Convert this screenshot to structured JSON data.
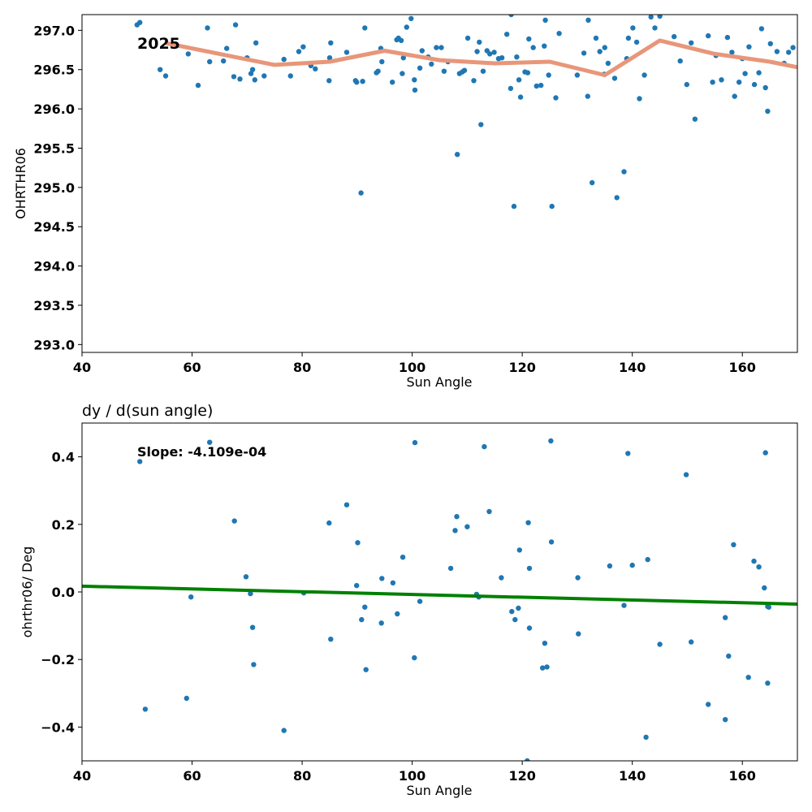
{
  "chart_data": [
    {
      "type": "scatter",
      "title": "",
      "xlabel": "Sun Angle",
      "ylabel": "OHRTHR06",
      "xlim": [
        40,
        170
      ],
      "ylim": [
        292.9,
        297.2
      ],
      "xticks": [
        40,
        60,
        80,
        100,
        120,
        140,
        160
      ],
      "yticks": [
        293.0,
        293.5,
        294.0,
        294.5,
        295.0,
        295.5,
        296.0,
        296.5,
        297.0
      ],
      "annotation": "2025",
      "grid": false,
      "colors": {
        "points": "#1f77b4",
        "trend": "#e8967a"
      },
      "series": [
        {
          "kind": "points",
          "x": [
            50.0,
            50.5,
            54.2,
            55.2,
            59.3,
            61.1,
            62.8,
            63.2,
            65.7,
            66.3,
            67.6,
            67.9,
            68.7,
            70.0,
            70.7,
            71.0,
            71.4,
            71.6,
            73.1,
            76.7,
            77.9,
            79.4,
            80.2,
            81.6,
            82.4,
            84.9,
            85.0,
            85.2,
            88.1,
            89.7,
            89.9,
            90.7,
            91.4,
            93.5,
            93.8,
            94.3,
            94.5,
            96.4,
            97.2,
            97.5,
            98.2,
            98.4,
            99.0,
            99.8,
            100.4,
            100.5,
            101.4,
            101.8,
            102.9,
            103.5,
            104.4,
            105.3,
            105.8,
            106.5,
            108.2,
            108.6,
            109.1,
            110.1,
            111.2,
            111.8,
            112.2,
            112.5,
            112.9,
            113.6,
            114.1,
            114.9,
            115.7,
            116.3,
            117.2,
            117.9,
            118.5,
            119.0,
            119.4,
            119.7,
            120.5,
            121.2,
            122.0,
            122.6,
            123.4,
            124.2,
            124.8,
            125.4,
            126.1,
            126.7,
            130.0,
            131.2,
            131.9,
            132.7,
            133.4,
            134.1,
            134.9,
            135.6,
            136.8,
            137.2,
            138.5,
            139.3,
            140.1,
            140.8,
            141.3,
            142.2,
            143.4,
            144.1,
            145.0,
            147.6,
            148.7,
            149.9,
            150.7,
            151.4,
            153.8,
            154.6,
            155.2,
            156.2,
            157.3,
            158.1,
            158.6,
            159.4,
            160.5,
            161.2,
            162.2,
            163.0,
            164.2,
            164.6,
            165.1,
            167.6,
            168.4,
            169.2
          ],
          "y": [
            297.07,
            297.1,
            296.5,
            296.42,
            296.7,
            296.3,
            297.03,
            296.6,
            296.61,
            296.77,
            296.41,
            297.07,
            296.38,
            296.65,
            296.45,
            296.5,
            296.37,
            296.84,
            296.42,
            296.63,
            296.42,
            296.73,
            296.79,
            296.55,
            296.51,
            296.36,
            296.65,
            296.84,
            296.72,
            296.36,
            296.34,
            294.93,
            297.03,
            296.46,
            296.48,
            296.77,
            296.6,
            296.34,
            296.88,
            296.9,
            296.45,
            296.65,
            297.04,
            297.15,
            296.37,
            296.24,
            296.52,
            296.74,
            296.66,
            296.57,
            296.78,
            296.78,
            296.48,
            296.6,
            295.42,
            296.45,
            296.47,
            296.9,
            296.36,
            296.73,
            296.85,
            295.8,
            296.48,
            296.74,
            296.7,
            296.72,
            296.64,
            296.65,
            296.95,
            296.26,
            294.76,
            296.66,
            296.37,
            296.15,
            296.47,
            296.89,
            296.78,
            296.29,
            296.3,
            297.13,
            296.43,
            294.76,
            296.14,
            296.96,
            296.43,
            296.71,
            296.16,
            295.06,
            296.9,
            296.73,
            296.44,
            296.58,
            296.39,
            294.87,
            295.2,
            296.9,
            297.03,
            296.85,
            296.13,
            296.43,
            297.17,
            297.03,
            297.18,
            296.92,
            296.61,
            296.31,
            296.84,
            295.87,
            296.93,
            296.34,
            296.68,
            296.37,
            296.91,
            296.72,
            296.16,
            296.34,
            296.45,
            296.79,
            296.31,
            296.46,
            296.27,
            295.97,
            296.83,
            296.58,
            296.72,
            296.78
          ],
          "extra_points": [
            [
              91.0,
              296.35
            ],
            [
              98.0,
              296.87
            ],
            [
              109.5,
              296.49
            ],
            [
              118.0,
              297.2
            ],
            [
              121.0,
              296.46
            ],
            [
              124.0,
              296.8
            ],
            [
              132.0,
              297.13
            ],
            [
              135.0,
              296.78
            ],
            [
              160.0,
              296.64
            ],
            [
              163.5,
              297.02
            ],
            [
              166.3,
              296.73
            ],
            [
              139.0,
              296.64
            ]
          ]
        },
        {
          "kind": "trend",
          "x": [
            55,
            65,
            75,
            85,
            95,
            105,
            115,
            125,
            135,
            145,
            155,
            165,
            170
          ],
          "y": [
            296.84,
            296.7,
            296.56,
            296.6,
            296.74,
            296.62,
            296.58,
            296.6,
            296.43,
            296.87,
            296.7,
            296.6,
            296.53
          ]
        }
      ]
    },
    {
      "type": "scatter",
      "title": "dy / d(sun angle)",
      "xlabel": "Sun Angle",
      "ylabel": "ohrthr06/ Deg",
      "xlim": [
        40,
        170
      ],
      "ylim": [
        -0.5,
        0.5
      ],
      "xticks": [
        40,
        60,
        80,
        100,
        120,
        140,
        160
      ],
      "yticks": [
        -0.4,
        -0.2,
        0.0,
        0.2,
        0.4
      ],
      "ytick_labels": [
        "−0.4",
        "−0.2",
        "0.0",
        "0.2",
        "0.4"
      ],
      "annotation": "Slope: -4.109e-04",
      "grid": false,
      "colors": {
        "points": "#1f77b4",
        "fit": "#008000"
      },
      "series": [
        {
          "kind": "points",
          "x": [
            50.5,
            51.5,
            59.0,
            59.8,
            63.2,
            67.7,
            69.8,
            70.6,
            71.0,
            71.2,
            76.7,
            80.3,
            84.9,
            85.2,
            88.1,
            89.9,
            90.1,
            90.8,
            91.4,
            91.6,
            94.4,
            94.5,
            96.5,
            97.3,
            98.3,
            100.4,
            100.5,
            101.4,
            107.0,
            107.8,
            108.1,
            110.0,
            111.7,
            112.1,
            113.1,
            114.0,
            116.2,
            118.1,
            118.7,
            119.3,
            119.5,
            120.9,
            121.1,
            121.3,
            121.3,
            123.7,
            124.1,
            124.5,
            125.2,
            125.3,
            130.1,
            130.2,
            135.9,
            138.5,
            139.2,
            140.0,
            142.5,
            142.8,
            145.0,
            149.8,
            150.7,
            153.8,
            156.9,
            156.9,
            157.5,
            158.4,
            161.1,
            162.1,
            163.0,
            164.0,
            164.2,
            164.6,
            164.6,
            164.8
          ],
          "y": [
            0.386,
            -0.347,
            -0.315,
            -0.015,
            0.443,
            0.21,
            0.045,
            -0.005,
            -0.105,
            -0.215,
            -0.41,
            -0.003,
            0.204,
            -0.14,
            0.258,
            0.019,
            0.146,
            -0.082,
            -0.045,
            -0.23,
            -0.092,
            0.04,
            0.027,
            -0.065,
            0.103,
            -0.195,
            0.442,
            -0.028,
            0.07,
            0.182,
            0.223,
            0.193,
            -0.007,
            -0.015,
            0.43,
            0.238,
            0.042,
            -0.058,
            -0.082,
            -0.048,
            0.124,
            -0.5,
            0.205,
            -0.107,
            0.07,
            -0.225,
            -0.152,
            -0.222,
            0.447,
            0.148,
            0.042,
            -0.124,
            0.077,
            -0.04,
            0.41,
            0.079,
            -0.43,
            0.096,
            -0.155,
            0.347,
            -0.148,
            -0.333,
            -0.076,
            -0.378,
            -0.19,
            0.14,
            -0.253,
            0.091,
            0.074,
            0.012,
            0.412,
            -0.043,
            -0.27,
            -0.045
          ]
        },
        {
          "kind": "fit",
          "x": [
            40,
            170
          ],
          "y": [
            0.017,
            -0.036
          ]
        }
      ]
    }
  ]
}
